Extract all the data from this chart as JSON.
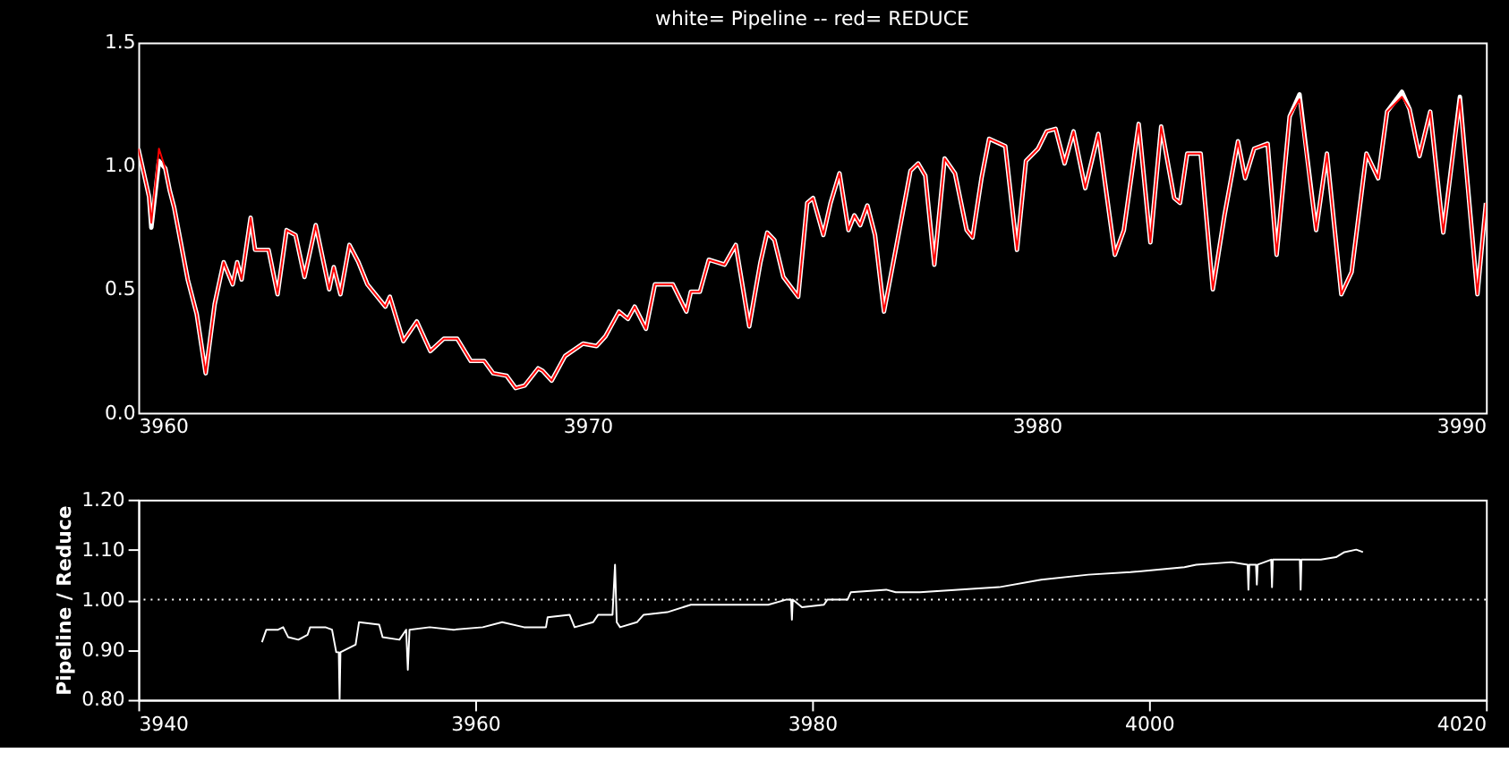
{
  "chart_data": [
    {
      "type": "line",
      "title": "white= Pipeline -- red= REDUCE",
      "x": [
        3960.0,
        3960.24,
        3960.29,
        3960.46,
        3960.6,
        3960.7,
        3960.8,
        3961.1,
        3961.3,
        3961.5,
        3961.7,
        3961.9,
        3962.1,
        3962.2,
        3962.3,
        3962.5,
        3962.6,
        3962.9,
        3963.1,
        3963.3,
        3963.5,
        3963.7,
        3963.95,
        3964.25,
        3964.35,
        3964.5,
        3964.7,
        3964.9,
        3965.1,
        3965.5,
        3965.6,
        3965.9,
        3966.2,
        3966.5,
        3966.8,
        3967.1,
        3967.4,
        3967.7,
        3967.9,
        3968.2,
        3968.4,
        3968.6,
        3968.9,
        3969.0,
        3969.2,
        3969.5,
        3969.9,
        3970.2,
        3970.4,
        3970.7,
        3970.9,
        3971.05,
        3971.3,
        3971.5,
        3971.9,
        3972.2,
        3972.3,
        3972.5,
        3972.7,
        3973.05,
        3973.3,
        3973.6,
        3973.85,
        3974.0,
        3974.16,
        3974.36,
        3974.69,
        3974.89,
        3975.02,
        3975.25,
        3975.41,
        3975.61,
        3975.81,
        3975.94,
        3976.07,
        3976.23,
        3976.4,
        3976.6,
        3976.86,
        3977.19,
        3977.36,
        3977.52,
        3977.72,
        3977.95,
        3978.18,
        3978.44,
        3978.57,
        3978.77,
        3978.94,
        3979.3,
        3979.56,
        3979.76,
        3980.03,
        3980.22,
        3980.42,
        3980.62,
        3980.82,
        3981.08,
        3981.37,
        3981.74,
        3981.94,
        3982.27,
        3982.53,
        3982.77,
        3983.06,
        3983.19,
        3983.35,
        3983.65,
        3983.92,
        3984.18,
        3984.48,
        3984.64,
        3984.84,
        3985.14,
        3985.34,
        3985.63,
        3985.85,
        3986.22,
        3986.46,
        3986.78,
        3987.01,
        3987.34,
        3987.6,
        3987.8,
        3988.13,
        3988.3,
        3988.52,
        3988.76,
        3989.05,
        3989.42,
        3989.81,
        3990.0
      ],
      "series": [
        {
          "color": "#ffffff",
          "values": [
            1.07,
            0.875,
            0.75,
            1.02,
            0.99,
            0.9,
            0.83,
            0.54,
            0.4,
            0.16,
            0.44,
            0.61,
            0.52,
            0.61,
            0.54,
            0.79,
            0.66,
            0.66,
            0.48,
            0.74,
            0.72,
            0.55,
            0.76,
            0.5,
            0.59,
            0.48,
            0.68,
            0.61,
            0.52,
            0.43,
            0.47,
            0.29,
            0.37,
            0.25,
            0.3,
            0.3,
            0.21,
            0.21,
            0.16,
            0.15,
            0.1,
            0.11,
            0.18,
            0.17,
            0.13,
            0.23,
            0.28,
            0.27,
            0.31,
            0.41,
            0.38,
            0.43,
            0.34,
            0.52,
            0.52,
            0.41,
            0.49,
            0.49,
            0.62,
            0.6,
            0.68,
            0.35,
            0.61,
            0.73,
            0.7,
            0.55,
            0.47,
            0.85,
            0.87,
            0.72,
            0.85,
            0.97,
            0.74,
            0.8,
            0.76,
            0.84,
            0.72,
            0.41,
            0.66,
            0.98,
            1.01,
            0.96,
            0.6,
            1.03,
            0.97,
            0.74,
            0.71,
            0.95,
            1.11,
            1.08,
            0.66,
            1.02,
            1.07,
            1.14,
            1.15,
            1.01,
            1.14,
            0.91,
            1.13,
            0.64,
            0.74,
            1.17,
            0.69,
            1.16,
            0.87,
            0.85,
            1.05,
            1.05,
            0.5,
            0.8,
            1.1,
            0.95,
            1.07,
            1.09,
            0.64,
            1.2,
            1.29,
            0.74,
            1.05,
            0.48,
            0.57,
            1.05,
            0.95,
            1.22,
            1.3,
            1.23,
            1.04,
            1.22,
            0.73,
            1.28,
            0.48,
            0.85
          ]
        },
        {
          "color": "#ff0000",
          "values": [
            1.07,
            0.875,
            0.77,
            1.07,
            0.99,
            0.9,
            0.83,
            0.54,
            0.4,
            0.16,
            0.44,
            0.61,
            0.52,
            0.61,
            0.54,
            0.79,
            0.66,
            0.66,
            0.48,
            0.74,
            0.72,
            0.55,
            0.76,
            0.5,
            0.59,
            0.48,
            0.68,
            0.61,
            0.52,
            0.43,
            0.47,
            0.29,
            0.37,
            0.25,
            0.3,
            0.3,
            0.21,
            0.21,
            0.16,
            0.15,
            0.1,
            0.11,
            0.18,
            0.17,
            0.13,
            0.23,
            0.28,
            0.27,
            0.31,
            0.41,
            0.38,
            0.43,
            0.34,
            0.52,
            0.52,
            0.41,
            0.49,
            0.49,
            0.62,
            0.6,
            0.68,
            0.35,
            0.61,
            0.73,
            0.7,
            0.55,
            0.47,
            0.85,
            0.87,
            0.72,
            0.85,
            0.97,
            0.74,
            0.8,
            0.76,
            0.84,
            0.72,
            0.41,
            0.66,
            0.98,
            1.01,
            0.96,
            0.6,
            1.03,
            0.97,
            0.74,
            0.71,
            0.95,
            1.11,
            1.08,
            0.66,
            1.02,
            1.07,
            1.14,
            1.15,
            1.01,
            1.14,
            0.91,
            1.13,
            0.64,
            0.74,
            1.17,
            0.69,
            1.16,
            0.87,
            0.85,
            1.05,
            1.05,
            0.5,
            0.8,
            1.1,
            0.95,
            1.07,
            1.09,
            0.64,
            1.2,
            1.27,
            0.74,
            1.05,
            0.48,
            0.57,
            1.05,
            0.95,
            1.22,
            1.28,
            1.23,
            1.04,
            1.22,
            0.73,
            1.27,
            0.48,
            0.85
          ]
        }
      ],
      "xlim": [
        3960,
        3990
      ],
      "xticks": [
        3960,
        3970,
        3980,
        3990
      ],
      "ylim": [
        0,
        1.5
      ],
      "yticks": [
        {
          "value": 0,
          "label": "0.0"
        },
        {
          "value": 0.5,
          "label": "0.5"
        },
        {
          "value": 1.0,
          "label": "1.0"
        },
        {
          "value": 1.5,
          "label": "1.5"
        }
      ]
    },
    {
      "type": "line",
      "ylabel": "Pipeline / Reduce",
      "x": [
        3947.34,
        3947.6,
        3948.3,
        3948.6,
        3948.9,
        3949.5,
        3950.05,
        3950.2,
        3951.1,
        3951.5,
        3951.75,
        3951.9,
        3951.95,
        3952.0,
        3952.9,
        3953.1,
        3954.3,
        3954.5,
        3955.5,
        3955.9,
        3956.0,
        3956.1,
        3957.3,
        3958.7,
        3960.45,
        3961.6,
        3962.9,
        3964.2,
        3964.3,
        3965.6,
        3965.9,
        3967.0,
        3967.3,
        3968.15,
        3968.3,
        3968.4,
        3968.6,
        3969.6,
        3970.0,
        3971.4,
        3972.8,
        3974.9,
        3977.4,
        3978.45,
        3978.75,
        3978.8,
        3978.85,
        3979.4,
        3980.7,
        3980.9,
        3982.1,
        3982.3,
        3984.4,
        3984.96,
        3986.4,
        3988.65,
        3991.1,
        3993.6,
        3996.4,
        3998.9,
        4002.1,
        4002.8,
        4004.9,
        4005.85,
        4005.9,
        4005.95,
        4006.35,
        4006.4,
        4006.45,
        4007.25,
        4007.3,
        4007.35,
        4008.95,
        4009.0,
        4009.05,
        4010.2,
        4011.1,
        4011.6,
        4012.3,
        4012.7
      ],
      "series": [
        {
          "color": "#ffffff",
          "values": [
            0.915,
            0.94,
            0.94,
            0.945,
            0.925,
            0.92,
            0.93,
            0.945,
            0.945,
            0.94,
            0.895,
            0.895,
            0.8,
            0.895,
            0.91,
            0.955,
            0.95,
            0.925,
            0.92,
            0.94,
            0.86,
            0.94,
            0.945,
            0.94,
            0.945,
            0.955,
            0.945,
            0.945,
            0.965,
            0.97,
            0.945,
            0.955,
            0.97,
            0.97,
            1.07,
            0.955,
            0.945,
            0.955,
            0.97,
            0.975,
            0.99,
            0.99,
            0.99,
            1.0,
            1.0,
            0.96,
            1.0,
            0.985,
            0.99,
            1.0,
            1.0,
            1.015,
            1.02,
            1.015,
            1.015,
            1.02,
            1.025,
            1.04,
            1.05,
            1.055,
            1.065,
            1.07,
            1.075,
            1.07,
            1.02,
            1.07,
            1.07,
            1.03,
            1.07,
            1.08,
            1.025,
            1.08,
            1.08,
            1.02,
            1.08,
            1.08,
            1.085,
            1.095,
            1.1,
            1.095
          ]
        }
      ],
      "xlim": [
        3940,
        4020
      ],
      "xticks": [
        3940,
        3960,
        3980,
        4000,
        4020
      ],
      "ylim": [
        0.8,
        1.2
      ],
      "yticks": [
        {
          "value": 0.8,
          "label": "0.80"
        },
        {
          "value": 0.9,
          "label": "0.90"
        },
        {
          "value": 1.0,
          "label": "1.00"
        },
        {
          "value": 1.1,
          "label": "1.10"
        },
        {
          "value": 1.2,
          "label": "1.20"
        }
      ],
      "ref_lines": [
        {
          "axis": "y",
          "value": 1.0,
          "color": "#ffffff",
          "line_style": "dotted"
        }
      ]
    }
  ]
}
